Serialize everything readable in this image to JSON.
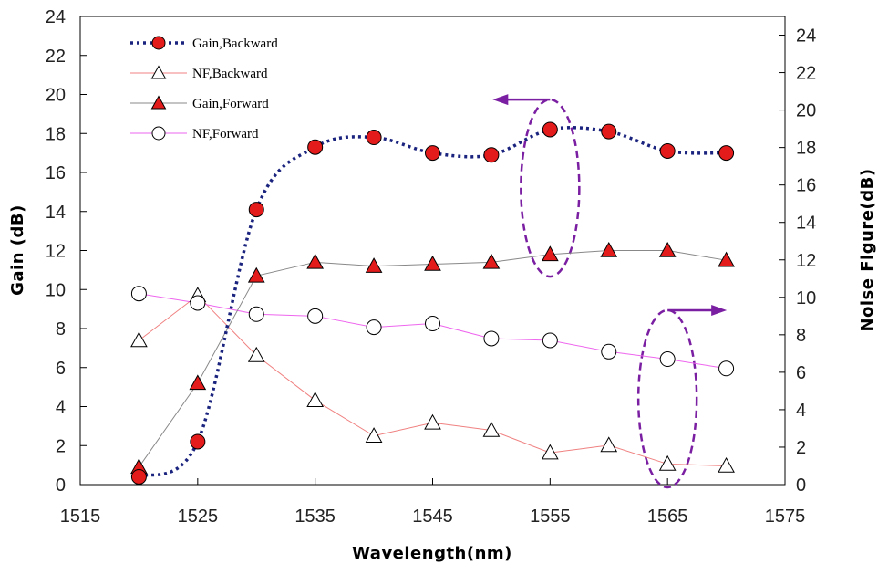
{
  "chart_data": {
    "type": "line",
    "xlabel": "Wavelength(nm)",
    "ylabel": "Gain (dB)",
    "y2label": "Noise Figure(dB)",
    "xlim": [
      1515,
      1575
    ],
    "xticks": [
      1515,
      1525,
      1535,
      1545,
      1555,
      1565,
      1575
    ],
    "ylim": [
      0,
      24
    ],
    "yticks": [
      0,
      2,
      4,
      6,
      8,
      10,
      12,
      14,
      16,
      18,
      20,
      22,
      24
    ],
    "y2lim": [
      0,
      25
    ],
    "y2ticks": [
      0,
      2,
      4,
      6,
      8,
      10,
      12,
      14,
      16,
      18,
      20,
      22,
      24
    ],
    "x": [
      1520,
      1525,
      1530,
      1535,
      1540,
      1545,
      1550,
      1555,
      1560,
      1565,
      1570
    ],
    "legend_position": "top-left",
    "series": [
      {
        "name": "Gain,Backward",
        "axis": "left",
        "values": [
          0.4,
          2.2,
          14.1,
          17.3,
          17.8,
          17.0,
          16.9,
          18.2,
          18.1,
          17.1,
          17.0
        ],
        "marker": "circle",
        "marker_fill": "#e31b1b",
        "line_color": "#1a237e",
        "line_style": "dotted-smooth"
      },
      {
        "name": "NF,Backward",
        "axis": "right",
        "values": [
          7.7,
          10.1,
          6.9,
          4.5,
          2.6,
          3.3,
          2.9,
          1.7,
          2.1,
          1.1,
          1.0
        ],
        "marker": "triangle",
        "marker_fill": "#ffffff",
        "line_color": "#f08080",
        "line_style": "solid"
      },
      {
        "name": "Gain,Forward",
        "axis": "left",
        "values": [
          0.9,
          5.2,
          10.7,
          11.4,
          11.2,
          11.3,
          11.4,
          11.8,
          12.0,
          12.0,
          11.5
        ],
        "marker": "triangle",
        "marker_fill": "#e31b1b",
        "line_color": "#888888",
        "line_style": "solid"
      },
      {
        "name": "NF,Forward",
        "axis": "right",
        "values": [
          10.2,
          9.7,
          9.1,
          9.0,
          8.4,
          8.6,
          7.8,
          7.7,
          7.1,
          6.7,
          6.2
        ],
        "marker": "circle",
        "marker_fill": "#ffffff",
        "line_color": "#ee66ee",
        "line_style": "solid"
      }
    ],
    "annotations": [
      {
        "type": "ellipse-arrow",
        "center": [
          1555,
          15.2
        ],
        "arrow_direction": "left",
        "arrow_target_axis": "left"
      },
      {
        "type": "ellipse-arrow",
        "center": [
          1565,
          4.4
        ],
        "arrow_direction": "right",
        "arrow_target_axis": "right"
      }
    ],
    "annotation_color": "#7b1fa2"
  }
}
